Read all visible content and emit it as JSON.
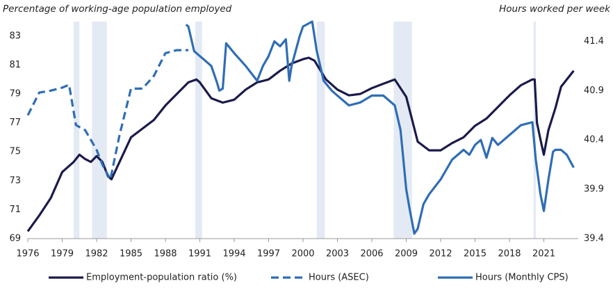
{
  "chart_data": {
    "type": "line",
    "title_left": "Percentage of working-age population employed",
    "title_right": "Hours worked per week",
    "xlim": [
      1976,
      2024
    ],
    "xticks": [
      1976,
      1979,
      1982,
      1985,
      1988,
      1991,
      1994,
      1997,
      2000,
      2003,
      2006,
      2009,
      2012,
      2015,
      2018,
      2021
    ],
    "ylim": [
      69,
      84
    ],
    "yticks": [
      69,
      71,
      73,
      75,
      77,
      79,
      81,
      83
    ],
    "y2lim": [
      39.4,
      41.6
    ],
    "y2ticks": [
      39.4,
      39.9,
      40.4,
      40.9,
      41.4
    ],
    "shade_color": "#e4eaf4",
    "shaded_ranges": [
      [
        1980,
        1980.5
      ],
      [
        1981.6,
        1982.9
      ],
      [
        1990.6,
        1991.2
      ],
      [
        2001.2,
        2001.9
      ],
      [
        2007.9,
        2009.5
      ],
      [
        2020.1,
        2020.3
      ]
    ],
    "legend": "bottom",
    "series": [
      {
        "name": "Employment-population ratio (%)",
        "color": "#1b1a4b",
        "dash": false,
        "x": [
          1976,
          1977,
          1978,
          1979,
          1980,
          1980.5,
          1981,
          1981.5,
          1982,
          1982.5,
          1983,
          1983.3,
          1984,
          1985,
          1986,
          1987,
          1988,
          1989,
          1990,
          1990.7,
          1991,
          1992,
          1993,
          1994,
          1995,
          1996,
          1997,
          1998,
          1999,
          2000,
          2000.5,
          2001,
          2002,
          2003,
          2004,
          2005,
          2006,
          2007,
          2008,
          2009,
          2010,
          2011,
          2012,
          2013,
          2014,
          2015,
          2016,
          2017,
          2018,
          2019,
          2020,
          2020.2,
          2020.4,
          2020.8,
          2021,
          2021.4,
          2022,
          2022.5,
          2023,
          2023.6
        ],
        "values": [
          69.5,
          70.6,
          71.8,
          73.6,
          74.3,
          74.8,
          74.5,
          74.3,
          74.7,
          74.3,
          73.3,
          73.1,
          74.3,
          76.0,
          76.6,
          77.2,
          78.2,
          79.0,
          79.8,
          80.0,
          79.8,
          78.7,
          78.4,
          78.6,
          79.3,
          79.8,
          80.0,
          80.6,
          81.1,
          81.4,
          81.5,
          81.3,
          80.0,
          79.3,
          78.9,
          79.0,
          79.4,
          79.7,
          80.0,
          78.8,
          75.7,
          75.1,
          75.1,
          75.6,
          76.0,
          76.8,
          77.3,
          78.1,
          78.9,
          79.6,
          80.0,
          80.0,
          77.0,
          75.5,
          74.8,
          76.5,
          78.0,
          79.5,
          80.0,
          80.6
        ]
      },
      {
        "name": "Hours (ASEC)",
        "color": "#2f6db5",
        "dash": true,
        "axis": "y2",
        "x": [
          1976,
          1977,
          1978,
          1979,
          1979.6,
          1980.2,
          1981,
          1982,
          1982.5,
          1983.2,
          1984,
          1985,
          1986,
          1987,
          1988,
          1989,
          1990
        ],
        "values": [
          40.65,
          40.88,
          40.9,
          40.93,
          40.96,
          40.55,
          40.5,
          40.3,
          40.15,
          40.0,
          40.45,
          40.92,
          40.92,
          41.05,
          41.28,
          41.31,
          41.31
        ]
      },
      {
        "name": "Hours (Monthly CPS)",
        "color": "#2f6db5",
        "dash": false,
        "axis": "y2",
        "x": [
          1989.8,
          1990,
          1990.5,
          1991,
          1991.5,
          1992,
          1992.5,
          1992.7,
          1993,
          1993.3,
          1994,
          1995,
          1996,
          1996.5,
          1997,
          1997.5,
          1998,
          1998.5,
          1998.8,
          1999,
          1999.7,
          2000,
          2000.8,
          2001.2,
          2001.8,
          2002.5,
          2003,
          2004,
          2005,
          2006,
          2007,
          2008,
          2008.5,
          2009,
          2009.3,
          2009.7,
          2010,
          2010.5,
          2011,
          2012,
          2013,
          2014,
          2014.5,
          2015,
          2015.5,
          2016,
          2016.5,
          2017,
          2018,
          2019,
          2020,
          2020.3,
          2020.7,
          2021,
          2021.4,
          2021.8,
          2022,
          2022.5,
          2023,
          2023.6
        ],
        "values": [
          41.57,
          41.55,
          41.3,
          41.25,
          41.2,
          41.15,
          40.98,
          40.9,
          40.92,
          41.38,
          41.28,
          41.15,
          41.0,
          41.15,
          41.25,
          41.4,
          41.35,
          41.42,
          41.0,
          41.15,
          41.45,
          41.55,
          41.6,
          41.3,
          41.0,
          40.9,
          40.85,
          40.75,
          40.78,
          40.85,
          40.85,
          40.75,
          40.5,
          39.9,
          39.7,
          39.45,
          39.5,
          39.75,
          39.85,
          40.0,
          40.2,
          40.3,
          40.25,
          40.35,
          40.4,
          40.22,
          40.42,
          40.35,
          40.45,
          40.55,
          40.58,
          40.2,
          39.85,
          39.68,
          40.0,
          40.28,
          40.3,
          40.3,
          40.25,
          40.12
        ]
      }
    ]
  }
}
